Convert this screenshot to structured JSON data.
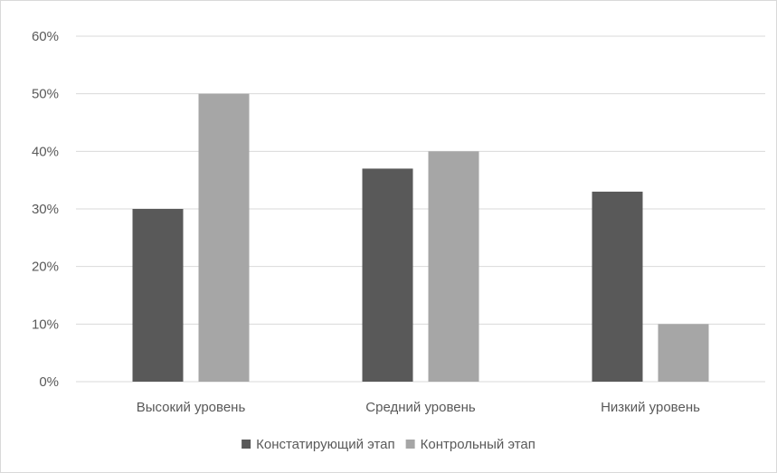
{
  "chart_data": {
    "type": "bar",
    "title": "",
    "xlabel": "",
    "ylabel": "",
    "categories": [
      "Высокий уровень",
      "Средний уровень",
      "Низкий уровень"
    ],
    "series": [
      {
        "name": "Констатирующий этап",
        "values": [
          30,
          37,
          33
        ],
        "color": "#595959"
      },
      {
        "name": "Контрольный этап",
        "values": [
          50,
          40,
          10
        ],
        "color": "#a6a6a6"
      }
    ],
    "ylim": [
      0,
      60
    ],
    "yticks": [
      0,
      10,
      20,
      30,
      40,
      50,
      60
    ],
    "ytick_labels": [
      "0%",
      "10%",
      "20%",
      "30%",
      "40%",
      "50%",
      "60%"
    ],
    "grid": true,
    "legend_position": "bottom",
    "gridline_color": "#d9d9d9"
  }
}
